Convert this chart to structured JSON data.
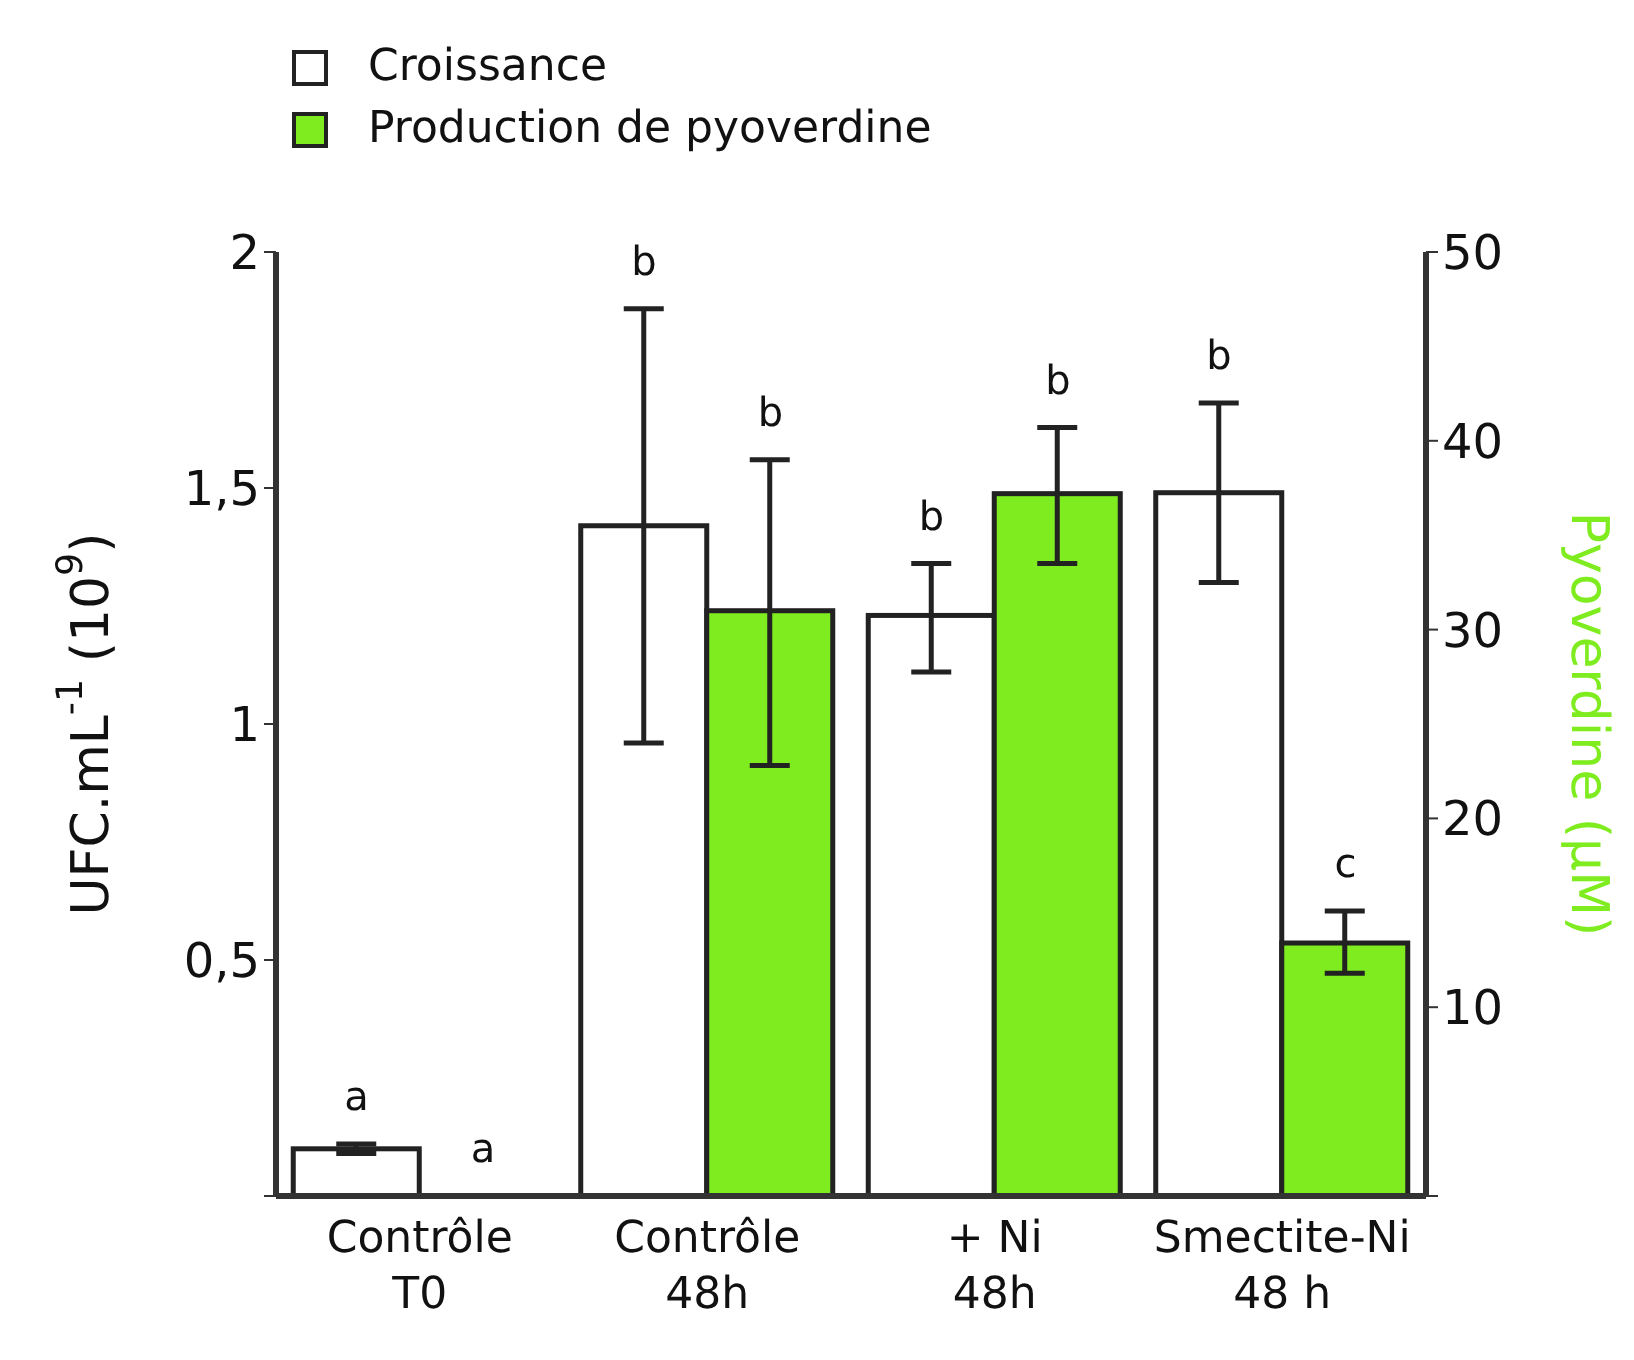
{
  "chart_data": {
    "type": "bar",
    "categories": [
      "Contrôle\nT0",
      "Contrôle\n48h",
      "+ Ni\n48h",
      "Smectite-Ni\n48 h"
    ],
    "series": [
      {
        "name": "Croissance",
        "color": "#ffffff",
        "values": [
          0.1,
          1.42,
          1.23,
          1.49
        ],
        "errors": [
          [
            0.09,
            0.11
          ],
          [
            0.96,
            1.88
          ],
          [
            1.11,
            1.34
          ],
          [
            1.3,
            1.68
          ]
        ]
      },
      {
        "name": "Production de pyoverdine",
        "color": "#7fec1f",
        "axis": "y2",
        "values": [
          0,
          31.0,
          37.2,
          13.4
        ],
        "errors": [
          null,
          [
            22.8,
            39.0
          ],
          [
            33.5,
            40.7
          ],
          [
            11.8,
            15.1
          ]
        ]
      }
    ],
    "annotations": [
      "a",
      "a",
      "b",
      "b",
      "b",
      "b",
      "b",
      "c"
    ],
    "ylabel": "UFC.mL$^{-1}$ (10$^{9}$)",
    "y2label": "Pyoverdine (µM)",
    "ylim": [
      0,
      2
    ],
    "yticks": [
      {
        "value": 0,
        "label": null
      },
      {
        "value": 0.5,
        "label": "0,5"
      },
      1,
      {
        "value": 1.5,
        "label": "1,5"
      },
      2
    ],
    "y2lim": [
      0,
      50
    ],
    "y2ticks": [
      {
        "value": 0,
        "label": null
      },
      10,
      20,
      30,
      40,
      50
    ],
    "legend": "top left",
    "grid": false
  }
}
